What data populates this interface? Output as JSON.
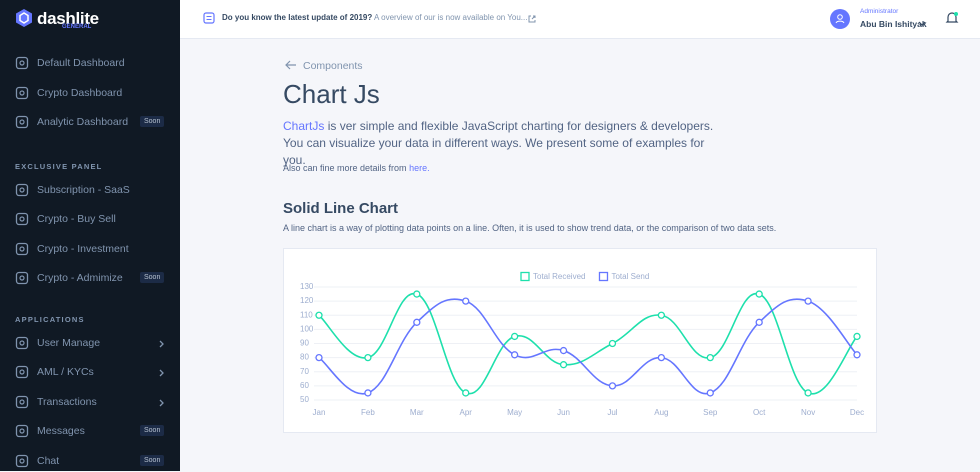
{
  "sidebar": {
    "brand": "dashlite",
    "brand_sub": "GENERAL",
    "top_items": [
      {
        "label": "Default Dashboard"
      },
      {
        "label": "Crypto Dashboard"
      },
      {
        "label": "Analytic Dashboard",
        "badge": "Soon"
      }
    ],
    "sections": [
      {
        "heading": "EXCLUSIVE PANEL",
        "items": [
          {
            "label": "Subscription - SaaS"
          },
          {
            "label": "Crypto - Buy Sell"
          },
          {
            "label": "Crypto - Investment"
          },
          {
            "label": "Crypto - Admimize",
            "badge": "Soon"
          }
        ]
      },
      {
        "heading": "APPLICATIONS",
        "items": [
          {
            "label": "User Manage",
            "submenu": true
          },
          {
            "label": "AML / KYCs",
            "submenu": true
          },
          {
            "label": "Transactions",
            "submenu": true
          },
          {
            "label": "Messages",
            "badge": "Soon"
          },
          {
            "label": "Chat",
            "badge": "Soon"
          }
        ]
      }
    ]
  },
  "header": {
    "notice_title": "Do you know the latest update of 2019?",
    "notice_text": "A overview of our is now available on You...",
    "user_role": "Administrator",
    "user_name": "Abu Bin Ishityak"
  },
  "content": {
    "breadcrumb": "Components",
    "title": "Chart Js",
    "intro_link": "ChartJs",
    "intro": "is ver simple and flexible JavaScript charting for designers & developers. You can visualize your data in different ways. We present some of examples for you.",
    "more_text": "Also can fine more details from",
    "more_link": "here.",
    "section_title": "Solid Line Chart",
    "section_text": "A line chart is a way of plotting data points on a line. Often, it is used to show trend data, or the comparison of two data sets."
  },
  "chart_data": {
    "type": "line",
    "categories": [
      "Jan",
      "Feb",
      "Mar",
      "Apr",
      "May",
      "Jun",
      "Jul",
      "Aug",
      "Sep",
      "Oct",
      "Nov",
      "Dec"
    ],
    "series": [
      {
        "name": "Total Received",
        "color": "#1ee0ac",
        "values": [
          110,
          80,
          125,
          55,
          95,
          75,
          90,
          110,
          80,
          125,
          55,
          95
        ]
      },
      {
        "name": "Total Send",
        "color": "#6576ff",
        "values": [
          80,
          55,
          105,
          120,
          82,
          85,
          60,
          80,
          55,
          105,
          120,
          82
        ]
      }
    ],
    "ylim": [
      50,
      130
    ],
    "yticks": [
      50,
      60,
      70,
      80,
      90,
      100,
      110,
      120,
      130
    ],
    "grid": true,
    "legend": "top"
  }
}
